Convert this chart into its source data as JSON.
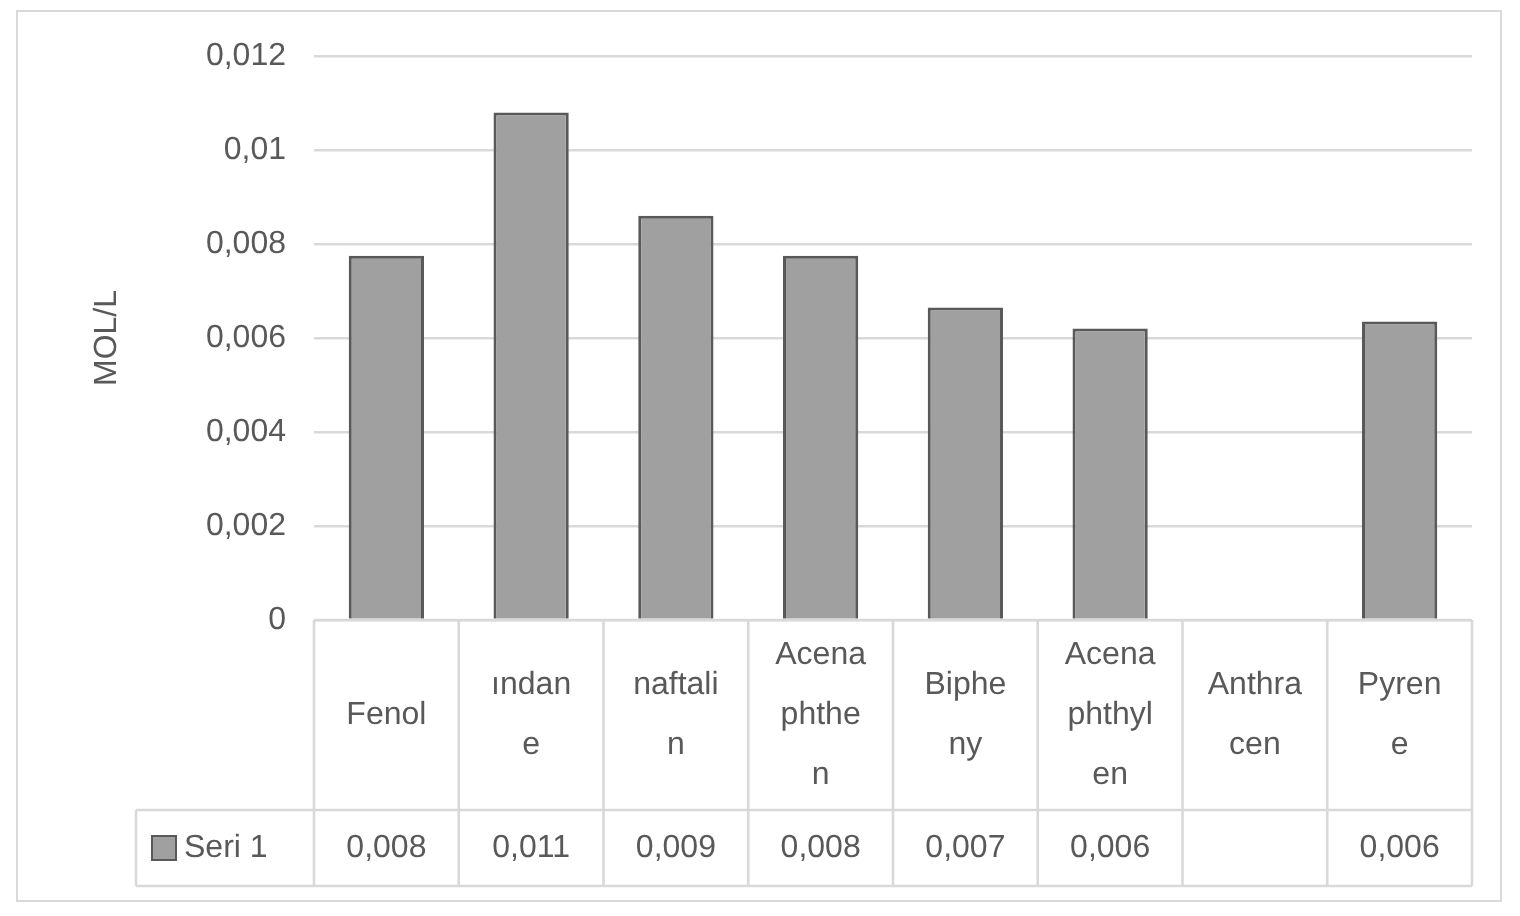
{
  "chart_data": {
    "type": "bar",
    "ylabel": "MOL/L",
    "categories": [
      "Fenol",
      "ındane",
      "naftalin",
      "Acenaphthen",
      "Bipheny",
      "Acenaphthylen",
      "Anthracen",
      "Pyrene"
    ],
    "series": [
      {
        "name": "Seri 1",
        "color": "#a0a0a0",
        "values": [
          0.00775,
          0.0108,
          0.0086,
          0.00775,
          0.00665,
          0.0062,
          null,
          0.00635
        ],
        "value_labels": [
          "0,008",
          "0,011",
          "0,009",
          "0,008",
          "0,007",
          "0,006",
          null,
          "0,006"
        ]
      }
    ],
    "ylim": [
      0,
      0.012
    ],
    "yticks": [
      0,
      {
        "value": 0.002,
        "label": "0,002"
      },
      {
        "value": 0.004,
        "label": "0,004"
      },
      {
        "value": 0.006,
        "label": "0,006"
      },
      {
        "value": 0.008,
        "label": "0,008"
      },
      {
        "value": 0.01,
        "label": "0,01"
      },
      {
        "value": 0.012,
        "label": "0,012"
      }
    ],
    "grid": "y",
    "legend": "bottom left"
  }
}
